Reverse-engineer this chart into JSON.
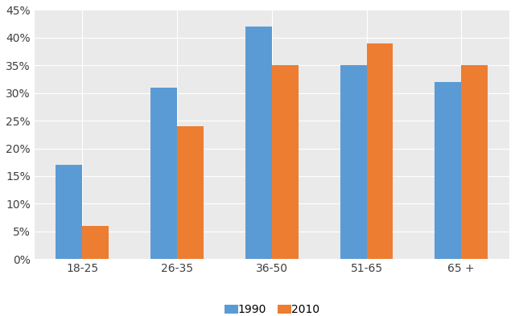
{
  "categories": [
    "18-25",
    "26-35",
    "36-50",
    "51-65",
    "65 +"
  ],
  "values_1990": [
    0.17,
    0.31,
    0.42,
    0.35,
    0.32
  ],
  "values_2010": [
    0.06,
    0.24,
    0.35,
    0.39,
    0.35
  ],
  "color_1990": "#5B9BD5",
  "color_2010": "#ED7D31",
  "ylim": [
    0,
    0.45
  ],
  "yticks": [
    0.0,
    0.05,
    0.1,
    0.15,
    0.2,
    0.25,
    0.3,
    0.35,
    0.4,
    0.45
  ],
  "legend_labels": [
    "1990",
    "2010"
  ],
  "bar_width": 0.28,
  "background_color": "#FFFFFF",
  "plot_bg_color": "#EAEAEA",
  "grid_color": "#FFFFFF"
}
